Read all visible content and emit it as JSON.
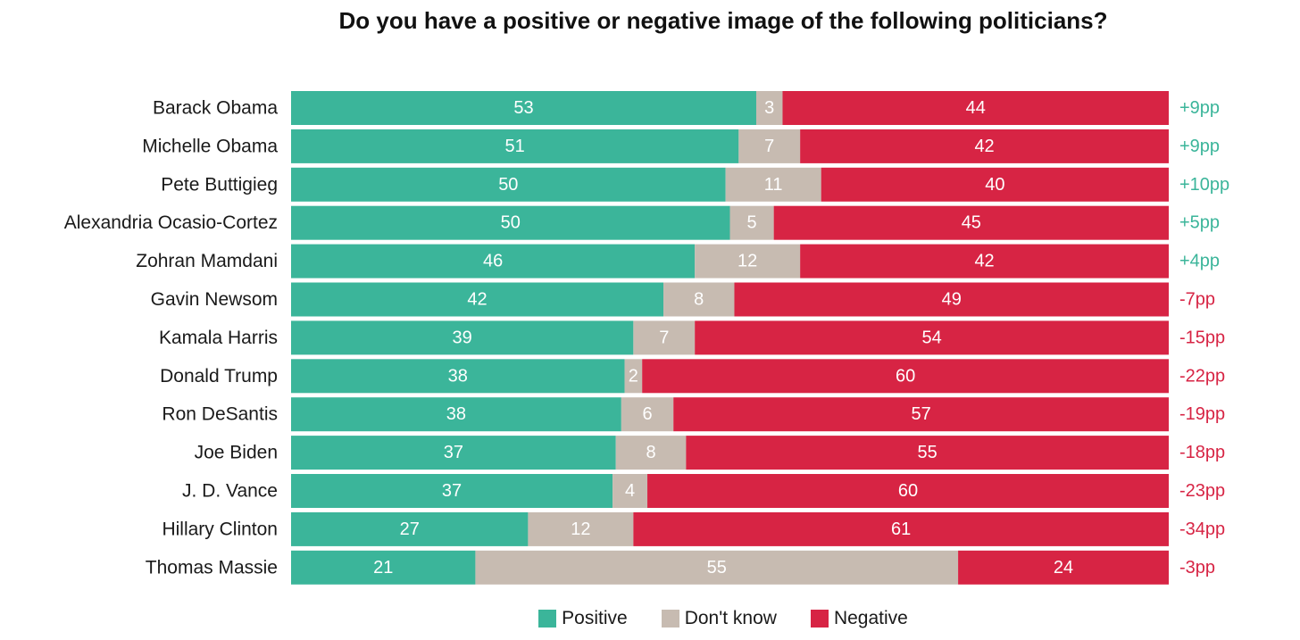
{
  "colors": {
    "positive": "#3bb59a",
    "dont_know": "#c7bbb1",
    "negative": "#d72444"
  },
  "chart_data": {
    "type": "bar",
    "orientation": "horizontal",
    "stacked": true,
    "title": "Do you have a positive or negative image of the following politicians?",
    "categories": [
      "Barack Obama",
      "Michelle Obama",
      "Pete Buttigieg",
      "Alexandria Ocasio-Cortez",
      "Zohran Mamdani",
      "Gavin Newsom",
      "Kamala Harris",
      "Donald Trump",
      "Ron DeSantis",
      "Joe Biden",
      "J. D. Vance",
      "Hillary Clinton",
      "Thomas Massie"
    ],
    "series": [
      {
        "name": "Positive",
        "values": [
          53,
          51,
          50,
          50,
          46,
          42,
          39,
          38,
          38,
          37,
          37,
          27,
          21
        ]
      },
      {
        "name": "Don't know",
        "values": [
          3,
          7,
          11,
          5,
          12,
          8,
          7,
          2,
          6,
          8,
          4,
          12,
          55
        ]
      },
      {
        "name": "Negative",
        "values": [
          44,
          42,
          40,
          45,
          42,
          49,
          54,
          60,
          57,
          55,
          60,
          61,
          24
        ]
      }
    ],
    "net": [
      "+9pp",
      "+9pp",
      "+10pp",
      "+5pp",
      "+4pp",
      "-7pp",
      "-15pp",
      "-22pp",
      "-19pp",
      "-18pp",
      "-23pp",
      "-34pp",
      "-3pp"
    ],
    "legend": [
      "Positive",
      "Don't know",
      "Negative"
    ],
    "legend_position": "bottom",
    "xlabel": "",
    "ylabel": ""
  }
}
